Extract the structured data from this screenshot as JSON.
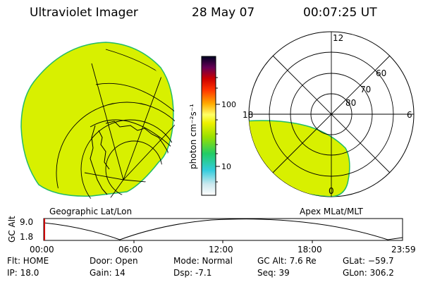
{
  "header": {
    "instrument": "Ultraviolet Imager",
    "date": "28 May 07",
    "time": "00:07:25 UT"
  },
  "colorbar": {
    "unit_label": "photon cm⁻²s⁻¹",
    "ticks": [
      "100",
      "10"
    ]
  },
  "panels": {
    "left_label": "Geographic Lat/Lon",
    "right_label": "Apex MLat/MLT"
  },
  "polar": {
    "mlt_labels": [
      "12",
      "18",
      "6",
      "0"
    ],
    "lat_labels": [
      "60",
      "70",
      "80"
    ]
  },
  "altitude_plot": {
    "axis_label": "GC Alt",
    "y_ticks": [
      "9.0",
      "1.8"
    ],
    "x_ticks": [
      "00:00",
      "06:00",
      "12:00",
      "18:00",
      "23:59"
    ]
  },
  "info": {
    "filter": "Flt: HOME",
    "ip": "IP: 18.0",
    "door": "Door: Open",
    "gain": "Gain: 14",
    "mode": "Mode: Normal",
    "dsp": "Dsp:   -7.1",
    "gc_alt": "GC Alt: 7.6 Re",
    "seq": "Seq: 39",
    "glat": "GLat: −59.7",
    "glon": "GLon: 306.2"
  },
  "colors": {
    "emission": "#d8f000",
    "emission_edge": "#22bb66",
    "line": "#000000",
    "cursor": "#cc0000"
  }
}
